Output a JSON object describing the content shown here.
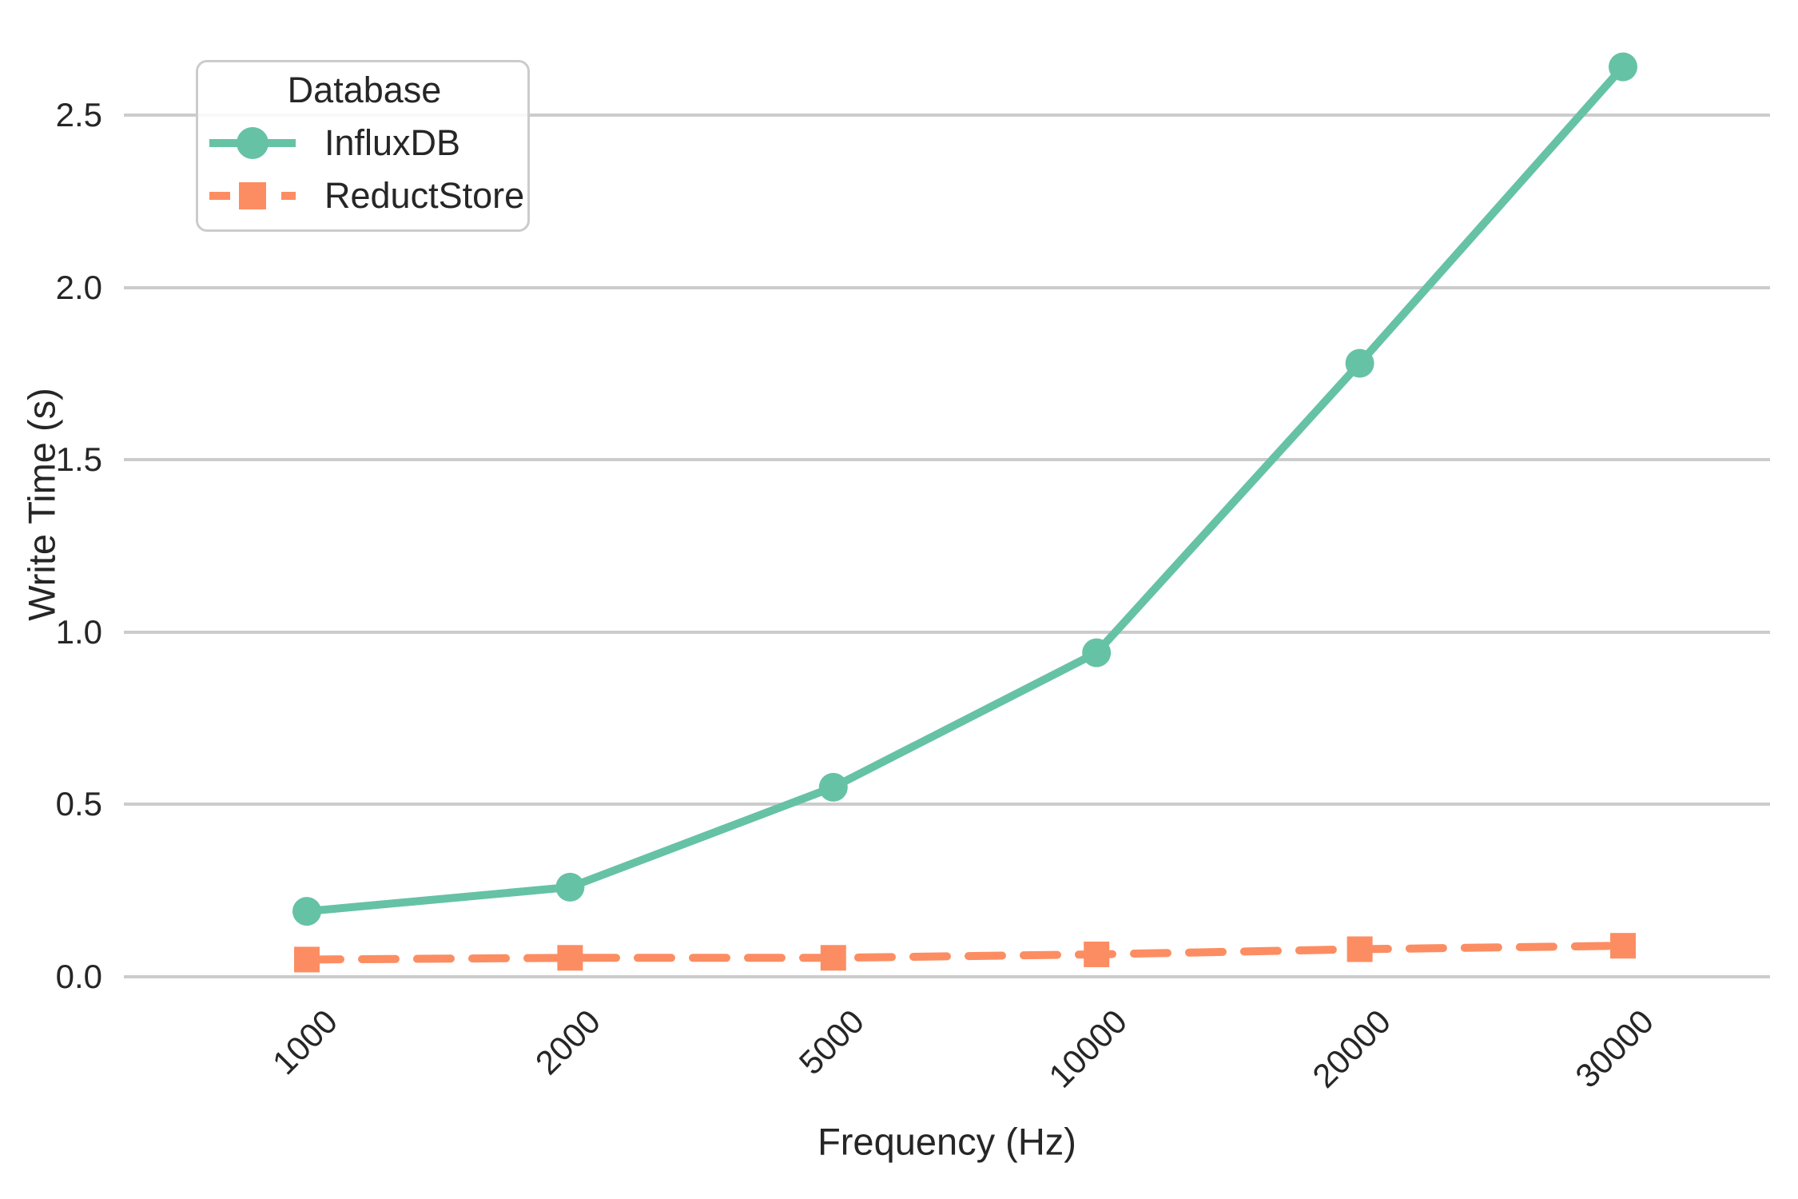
{
  "chart_data": {
    "type": "line",
    "title": "",
    "xlabel": "Frequency (Hz)",
    "ylabel": "Write Time (s)",
    "categories": [
      "1000",
      "2000",
      "5000",
      "10000",
      "20000",
      "30000"
    ],
    "series": [
      {
        "name": "InfluxDB",
        "values": [
          0.19,
          0.26,
          0.55,
          0.94,
          1.78,
          2.64
        ],
        "color": "#66c2a5",
        "line_style": "solid",
        "marker": "circle"
      },
      {
        "name": "ReductStore",
        "values": [
          0.05,
          0.055,
          0.055,
          0.065,
          0.08,
          0.09
        ],
        "color": "#fc8d62",
        "line_style": "dashed",
        "marker": "square"
      }
    ],
    "yticks": {
      "labels": [
        "0.0",
        "0.5",
        "1.0",
        "1.5",
        "2.0",
        "2.5"
      ],
      "values": [
        0,
        0.5,
        1.0,
        1.5,
        2.0,
        2.5
      ]
    },
    "ylim": [
      0,
      2.74
    ],
    "grid": "horizontal",
    "legend": {
      "title": "Database",
      "position": "upper left"
    },
    "colors": {
      "grid": "#cccccc",
      "text": "#262626",
      "background": "#ffffff"
    }
  }
}
